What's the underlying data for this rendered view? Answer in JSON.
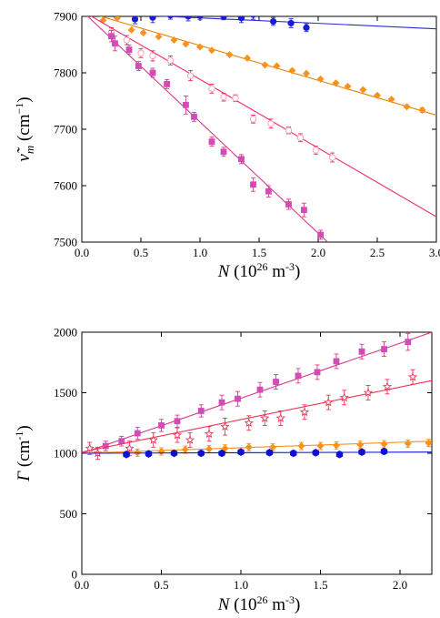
{
  "chart_data": [
    {
      "type": "scatter",
      "xlabel": {
        "symbol": "N",
        "unit_open": " (10",
        "unit_exp": "26",
        "unit_mid": " m",
        "unit_exp2": "-3",
        "unit_close": ")"
      },
      "ylabel": {
        "symbol": "ν̃",
        "sub": "m",
        "unit_open": " (cm",
        "unit_exp": "−1",
        "unit_close": ")"
      },
      "xlim": [
        0,
        3.0
      ],
      "ylim": [
        7500,
        7900
      ],
      "xticks": [
        "0.0",
        "0.5",
        "1.0",
        "1.5",
        "2.0",
        "2.5",
        "3.0"
      ],
      "yticks": [
        "7500",
        "7600",
        "7700",
        "7800",
        "7900"
      ],
      "x_tick_values": [
        0,
        0.5,
        1.0,
        1.5,
        2.0,
        2.5,
        3.0
      ],
      "y_tick_values": [
        7500,
        7600,
        7700,
        7800,
        7900
      ],
      "grid": false,
      "series": [
        {
          "marker": "circle",
          "color": "#1a1adb",
          "line_color": "#2a2ad0",
          "fit": [
            [
              0,
              7907
            ],
            [
              3.0,
              7878
            ]
          ],
          "points": [
            [
              0.29,
              7905,
              7
            ],
            [
              0.45,
              7895,
              8
            ],
            [
              0.6,
              7898,
              9
            ],
            [
              0.75,
              7902,
              7
            ],
            [
              0.9,
              7900,
              8
            ],
            [
              1.0,
              7901,
              7
            ],
            [
              1.2,
              7900,
              6
            ],
            [
              1.35,
              7897,
              8
            ],
            [
              1.45,
              7903,
              8
            ],
            [
              1.62,
              7891,
              7
            ],
            [
              1.77,
              7888,
              8
            ],
            [
              1.9,
              7880,
              7
            ]
          ]
        },
        {
          "marker": "diamond",
          "color": "#f7921e",
          "line_color": "#e8820a",
          "fit": [
            [
              0,
              7910
            ],
            [
              3.0,
              7725
            ]
          ],
          "points": [
            [
              0.05,
              7915,
              0
            ],
            [
              0.18,
              7893,
              0
            ],
            [
              0.3,
              7897,
              0
            ],
            [
              0.42,
              7876,
              0
            ],
            [
              0.52,
              7871,
              0
            ],
            [
              0.65,
              7864,
              0
            ],
            [
              0.78,
              7858,
              0
            ],
            [
              0.88,
              7851,
              0
            ],
            [
              1.0,
              7846,
              0
            ],
            [
              1.1,
              7840,
              0
            ],
            [
              1.25,
              7832,
              0
            ],
            [
              1.4,
              7826,
              0
            ],
            [
              1.55,
              7814,
              0
            ],
            [
              1.65,
              7812,
              0
            ],
            [
              1.78,
              7804,
              0
            ],
            [
              1.9,
              7799,
              0
            ],
            [
              2.02,
              7789,
              0
            ],
            [
              2.15,
              7782,
              0
            ],
            [
              2.25,
              7776,
              0
            ],
            [
              2.38,
              7770,
              0
            ],
            [
              2.5,
              7760,
              0
            ],
            [
              2.62,
              7753,
              0
            ],
            [
              2.75,
              7740,
              0
            ],
            [
              2.88,
              7734,
              4
            ]
          ]
        },
        {
          "marker": "open-circle",
          "color": "#f5a6b6",
          "line_color": "#ee2a66",
          "fit": [
            [
              0,
              7910
            ],
            [
              3.0,
              7545
            ]
          ],
          "points": [
            [
              0.25,
              7872,
              8
            ],
            [
              0.38,
              7858,
              8
            ],
            [
              0.5,
              7835,
              8
            ],
            [
              0.6,
              7830,
              9
            ],
            [
              0.75,
              7822,
              8
            ],
            [
              0.92,
              7795,
              9
            ],
            [
              1.1,
              7772,
              8
            ],
            [
              1.2,
              7757,
              7
            ],
            [
              1.3,
              7755,
              6
            ],
            [
              1.45,
              7718,
              7
            ],
            [
              1.6,
              7710,
              8
            ],
            [
              1.75,
              7698,
              6
            ],
            [
              1.85,
              7685,
              7
            ],
            [
              1.98,
              7663,
              7
            ],
            [
              2.12,
              7650,
              8
            ]
          ]
        },
        {
          "marker": "square",
          "color": "#d44bb8",
          "line_color": "#d83c84",
          "fit": [
            [
              0,
              7910
            ],
            [
              2.08,
              7500
            ]
          ],
          "points": [
            [
              0.25,
              7865,
              10
            ],
            [
              0.28,
              7852,
              13
            ],
            [
              0.4,
              7841,
              8
            ],
            [
              0.48,
              7812,
              8
            ],
            [
              0.6,
              7800,
              8
            ],
            [
              0.72,
              7780,
              8
            ],
            [
              0.88,
              7743,
              16
            ],
            [
              0.95,
              7722,
              8
            ],
            [
              1.1,
              7678,
              8
            ],
            [
              1.2,
              7660,
              8
            ],
            [
              1.35,
              7647,
              8
            ],
            [
              1.45,
              7602,
              12
            ],
            [
              1.58,
              7590,
              10
            ],
            [
              1.75,
              7567,
              9
            ],
            [
              1.88,
              7557,
              12
            ],
            [
              2.02,
              7513,
              8
            ]
          ]
        }
      ]
    },
    {
      "type": "scatter",
      "xlabel": {
        "symbol": "N",
        "unit_open": " (10",
        "unit_exp": "26",
        "unit_mid": " m",
        "unit_exp2": "-3",
        "unit_close": ")"
      },
      "ylabel": {
        "symbol": "Γ",
        "unit_open": " (cm",
        "unit_exp": "-1",
        "unit_close": ")"
      },
      "xlim": [
        0,
        2.2
      ],
      "ylim": [
        0,
        2000
      ],
      "xticks": [
        "0.0",
        "0.5",
        "1.0",
        "1.5",
        "2.0"
      ],
      "yticks": [
        "0",
        "500",
        "1000",
        "1500",
        "2000"
      ],
      "x_tick_values": [
        0,
        0.5,
        1.0,
        1.5,
        2.0
      ],
      "y_tick_values": [
        0,
        500,
        1000,
        1500,
        2000
      ],
      "grid": false,
      "series": [
        {
          "marker": "square",
          "color": "#d44bb8",
          "line_color": "#d83c84",
          "fit": [
            [
              0,
              1000
            ],
            [
              2.2,
              2000
            ]
          ],
          "points": [
            [
              0.15,
              1060,
              40
            ],
            [
              0.25,
              1100,
              40
            ],
            [
              0.35,
              1165,
              50
            ],
            [
              0.5,
              1230,
              50
            ],
            [
              0.6,
              1265,
              50
            ],
            [
              0.75,
              1350,
              50
            ],
            [
              0.88,
              1420,
              60
            ],
            [
              0.98,
              1450,
              60
            ],
            [
              1.12,
              1525,
              60
            ],
            [
              1.22,
              1590,
              60
            ],
            [
              1.36,
              1640,
              60
            ],
            [
              1.48,
              1670,
              60
            ],
            [
              1.6,
              1760,
              60
            ],
            [
              1.76,
              1840,
              60
            ],
            [
              1.9,
              1860,
              60
            ],
            [
              2.05,
              1920,
              70
            ]
          ]
        },
        {
          "marker": "open-star",
          "color": "#ee3355",
          "line_color": "#ee3355",
          "fit": [
            [
              0,
              1010
            ],
            [
              2.2,
              1600
            ]
          ],
          "points": [
            [
              0.05,
              1040,
              50
            ],
            [
              0.1,
              1000,
              50
            ],
            [
              0.3,
              1040,
              60
            ],
            [
              0.45,
              1110,
              60
            ],
            [
              0.6,
              1150,
              60
            ],
            [
              0.68,
              1110,
              60
            ],
            [
              0.8,
              1160,
              60
            ],
            [
              0.9,
              1220,
              70
            ],
            [
              1.05,
              1250,
              60
            ],
            [
              1.15,
              1290,
              60
            ],
            [
              1.25,
              1290,
              60
            ],
            [
              1.4,
              1340,
              60
            ],
            [
              1.55,
              1420,
              60
            ],
            [
              1.65,
              1460,
              60
            ],
            [
              1.8,
              1500,
              60
            ],
            [
              1.92,
              1550,
              60
            ],
            [
              2.08,
              1630,
              60
            ]
          ]
        },
        {
          "marker": "diamond",
          "color": "#f7921e",
          "line_color": "#f7921e",
          "fit": [
            [
              0,
              1000
            ],
            [
              2.2,
              1100
            ]
          ],
          "points": [
            [
              0.35,
              1005,
              30
            ],
            [
              0.5,
              1015,
              30
            ],
            [
              0.65,
              1030,
              30
            ],
            [
              0.8,
              1035,
              30
            ],
            [
              0.9,
              1040,
              30
            ],
            [
              1.05,
              1050,
              30
            ],
            [
              1.2,
              1050,
              30
            ],
            [
              1.38,
              1060,
              30
            ],
            [
              1.5,
              1060,
              30
            ],
            [
              1.6,
              1065,
              30
            ],
            [
              1.75,
              1070,
              30
            ],
            [
              1.9,
              1075,
              30
            ],
            [
              2.05,
              1080,
              30
            ],
            [
              2.18,
              1085,
              30
            ]
          ]
        },
        {
          "marker": "hexagon",
          "color": "#1010d0",
          "line_color": "#1010d0",
          "fit": [
            [
              0,
              1000
            ],
            [
              2.2,
              1010
            ]
          ],
          "points": [
            [
              0.28,
              990,
              20
            ],
            [
              0.42,
              995,
              20
            ],
            [
              0.58,
              1000,
              20
            ],
            [
              0.75,
              1000,
              20
            ],
            [
              0.88,
              1000,
              20
            ],
            [
              1.0,
              1010,
              20
            ],
            [
              1.18,
              1005,
              20
            ],
            [
              1.33,
              1000,
              20
            ],
            [
              1.47,
              1005,
              20
            ],
            [
              1.62,
              990,
              20
            ],
            [
              1.76,
              1010,
              20
            ],
            [
              1.9,
              1015,
              20
            ]
          ]
        }
      ]
    }
  ]
}
